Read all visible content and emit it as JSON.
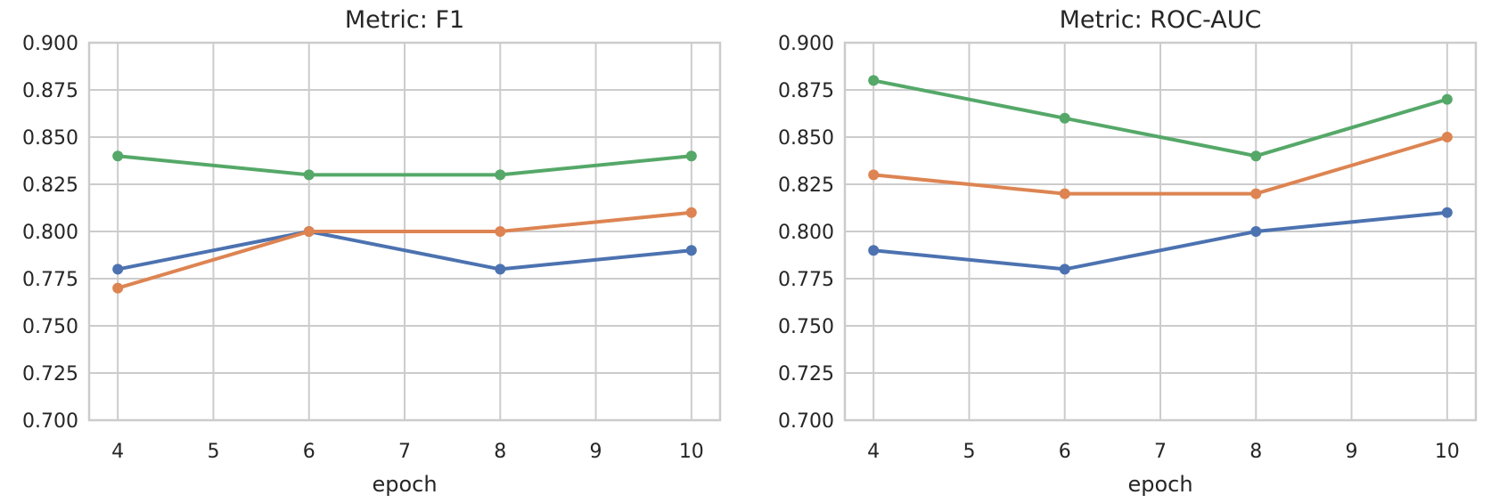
{
  "style": {
    "background": "#ffffff",
    "grid_color": "#cccccc",
    "spine_color": "#cccccc",
    "text_color": "#262626",
    "series_colors": [
      "#4C72B0",
      "#DD8452",
      "#55A868"
    ]
  },
  "chart_data": [
    {
      "type": "line",
      "title": "Metric: F1",
      "xlabel": "epoch",
      "ylabel": "",
      "x": [
        4,
        6,
        8,
        10
      ],
      "x_ticks": [
        "4",
        "5",
        "6",
        "7",
        "8",
        "9",
        "10"
      ],
      "y_ticks": [
        "0.700",
        "0.725",
        "0.750",
        "0.775",
        "0.800",
        "0.825",
        "0.850",
        "0.875",
        "0.900"
      ],
      "xlim": [
        3.7,
        10.3
      ],
      "ylim": [
        0.7,
        0.9
      ],
      "grid": true,
      "legend": "none",
      "series": [
        {
          "color": "#4C72B0",
          "values": [
            0.78,
            0.8,
            0.78,
            0.79
          ]
        },
        {
          "color": "#DD8452",
          "values": [
            0.77,
            0.8,
            0.8,
            0.81
          ]
        },
        {
          "color": "#55A868",
          "values": [
            0.84,
            0.83,
            0.83,
            0.84
          ]
        }
      ]
    },
    {
      "type": "line",
      "title": "Metric: ROC-AUC",
      "xlabel": "epoch",
      "ylabel": "",
      "x": [
        4,
        6,
        8,
        10
      ],
      "x_ticks": [
        "4",
        "5",
        "6",
        "7",
        "8",
        "9",
        "10"
      ],
      "y_ticks": [
        "0.700",
        "0.725",
        "0.750",
        "0.775",
        "0.800",
        "0.825",
        "0.850",
        "0.875",
        "0.900"
      ],
      "xlim": [
        3.7,
        10.3
      ],
      "ylim": [
        0.7,
        0.9
      ],
      "grid": true,
      "legend": "none",
      "series": [
        {
          "color": "#4C72B0",
          "values": [
            0.79,
            0.78,
            0.8,
            0.81
          ]
        },
        {
          "color": "#DD8452",
          "values": [
            0.83,
            0.82,
            0.82,
            0.85
          ]
        },
        {
          "color": "#55A868",
          "values": [
            0.88,
            0.86,
            0.84,
            0.87
          ]
        }
      ]
    }
  ]
}
